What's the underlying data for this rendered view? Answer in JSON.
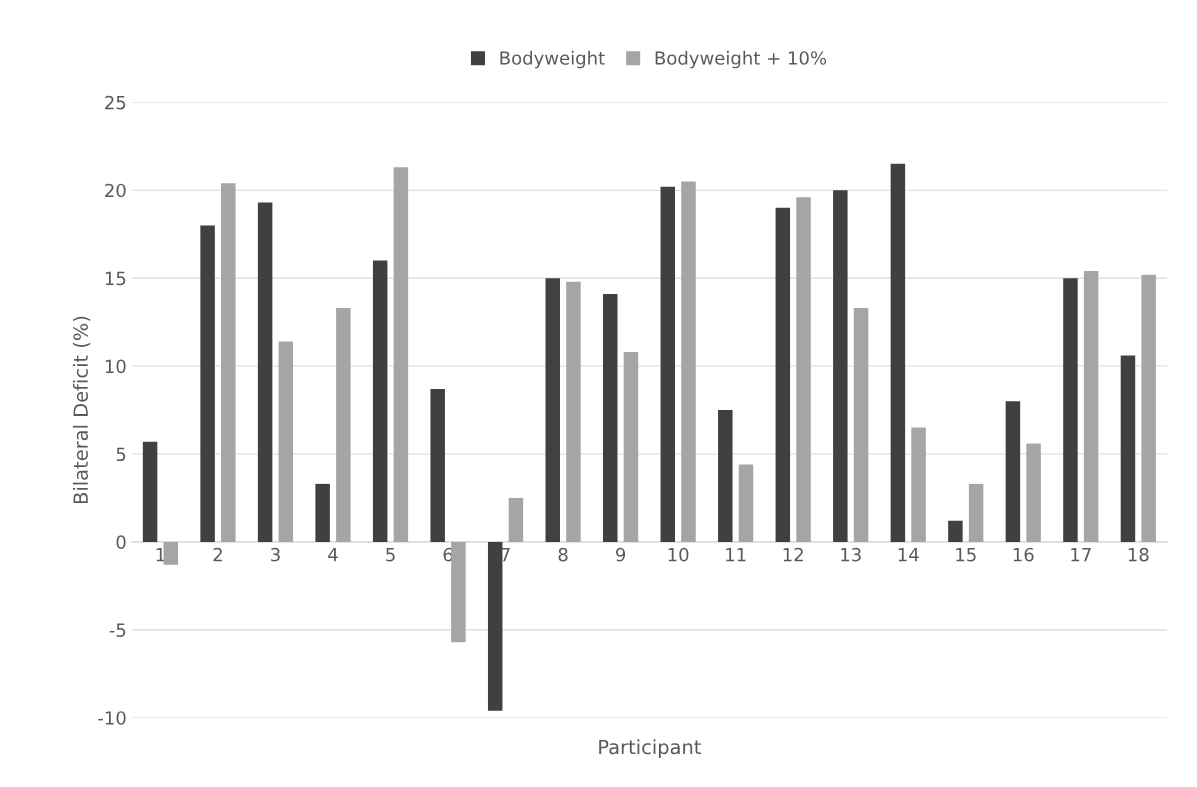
{
  "chart_data": {
    "type": "bar",
    "xlabel": "Participant",
    "ylabel": "Bilateral Deficit (%)",
    "categories": [
      "1",
      "2",
      "3",
      "4",
      "5",
      "6",
      "7",
      "8",
      "9",
      "10",
      "11",
      "12",
      "13",
      "14",
      "15",
      "16",
      "17",
      "18"
    ],
    "series": [
      {
        "name": "Bodyweight",
        "color": "#404040",
        "values": [
          5.7,
          18.0,
          19.3,
          3.3,
          16.0,
          8.7,
          -9.6,
          15.0,
          14.1,
          20.2,
          7.5,
          19.0,
          20.0,
          21.5,
          1.2,
          8.0,
          15.0,
          10.6
        ]
      },
      {
        "name": "Bodyweight + 10%",
        "color": "#a5a5a5",
        "values": [
          -1.3,
          20.4,
          11.4,
          13.3,
          21.3,
          -5.7,
          2.5,
          14.8,
          10.8,
          20.5,
          4.4,
          19.6,
          13.3,
          6.5,
          3.3,
          5.6,
          15.4,
          15.2
        ]
      }
    ],
    "ylim": [
      -10,
      25
    ],
    "yticks": [
      -10,
      -5,
      0,
      5,
      10,
      15,
      20,
      25
    ],
    "grid": "y",
    "legend": "top"
  }
}
